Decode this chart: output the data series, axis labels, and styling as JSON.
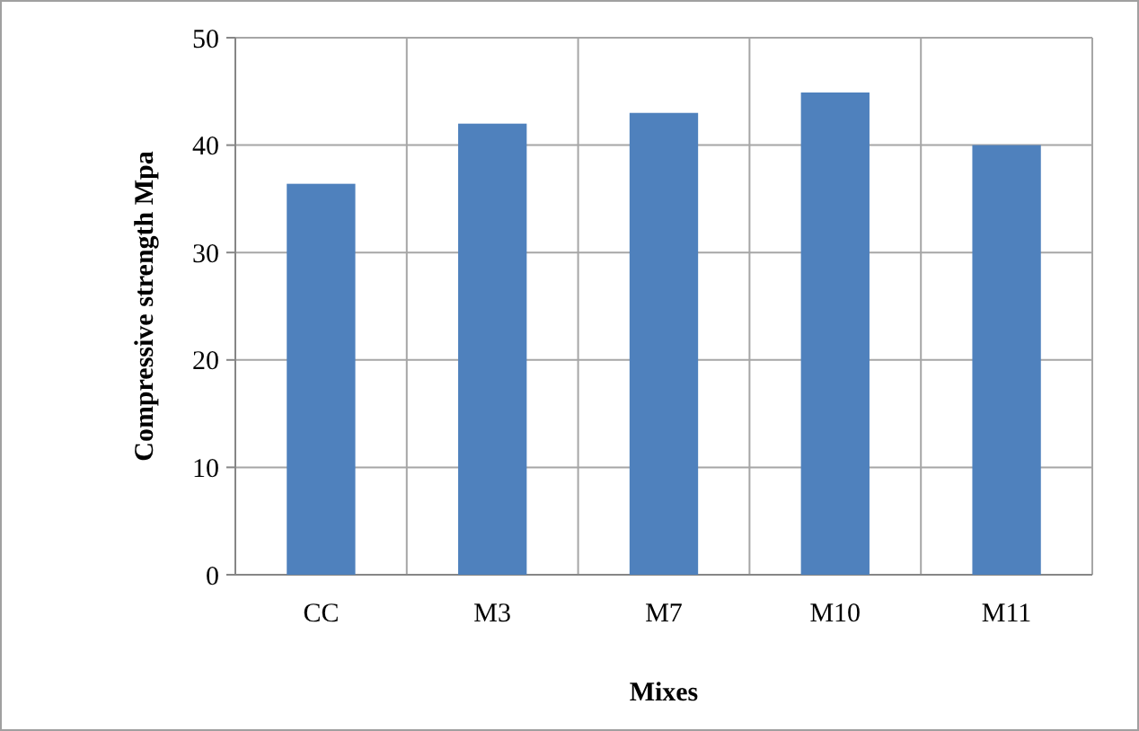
{
  "chart_data": {
    "type": "bar",
    "xlabel": "Mixes",
    "ylabel": "Compressive strength Mpa",
    "categories": [
      "CC",
      "M3",
      "M7",
      "M10",
      "M11"
    ],
    "values": [
      36.4,
      42.0,
      43.0,
      44.9,
      40.0
    ],
    "color": "#4f81bd",
    "ylim": [
      0,
      50
    ],
    "yticks": [
      0,
      10,
      20,
      30,
      40,
      50
    ],
    "grid": true
  }
}
